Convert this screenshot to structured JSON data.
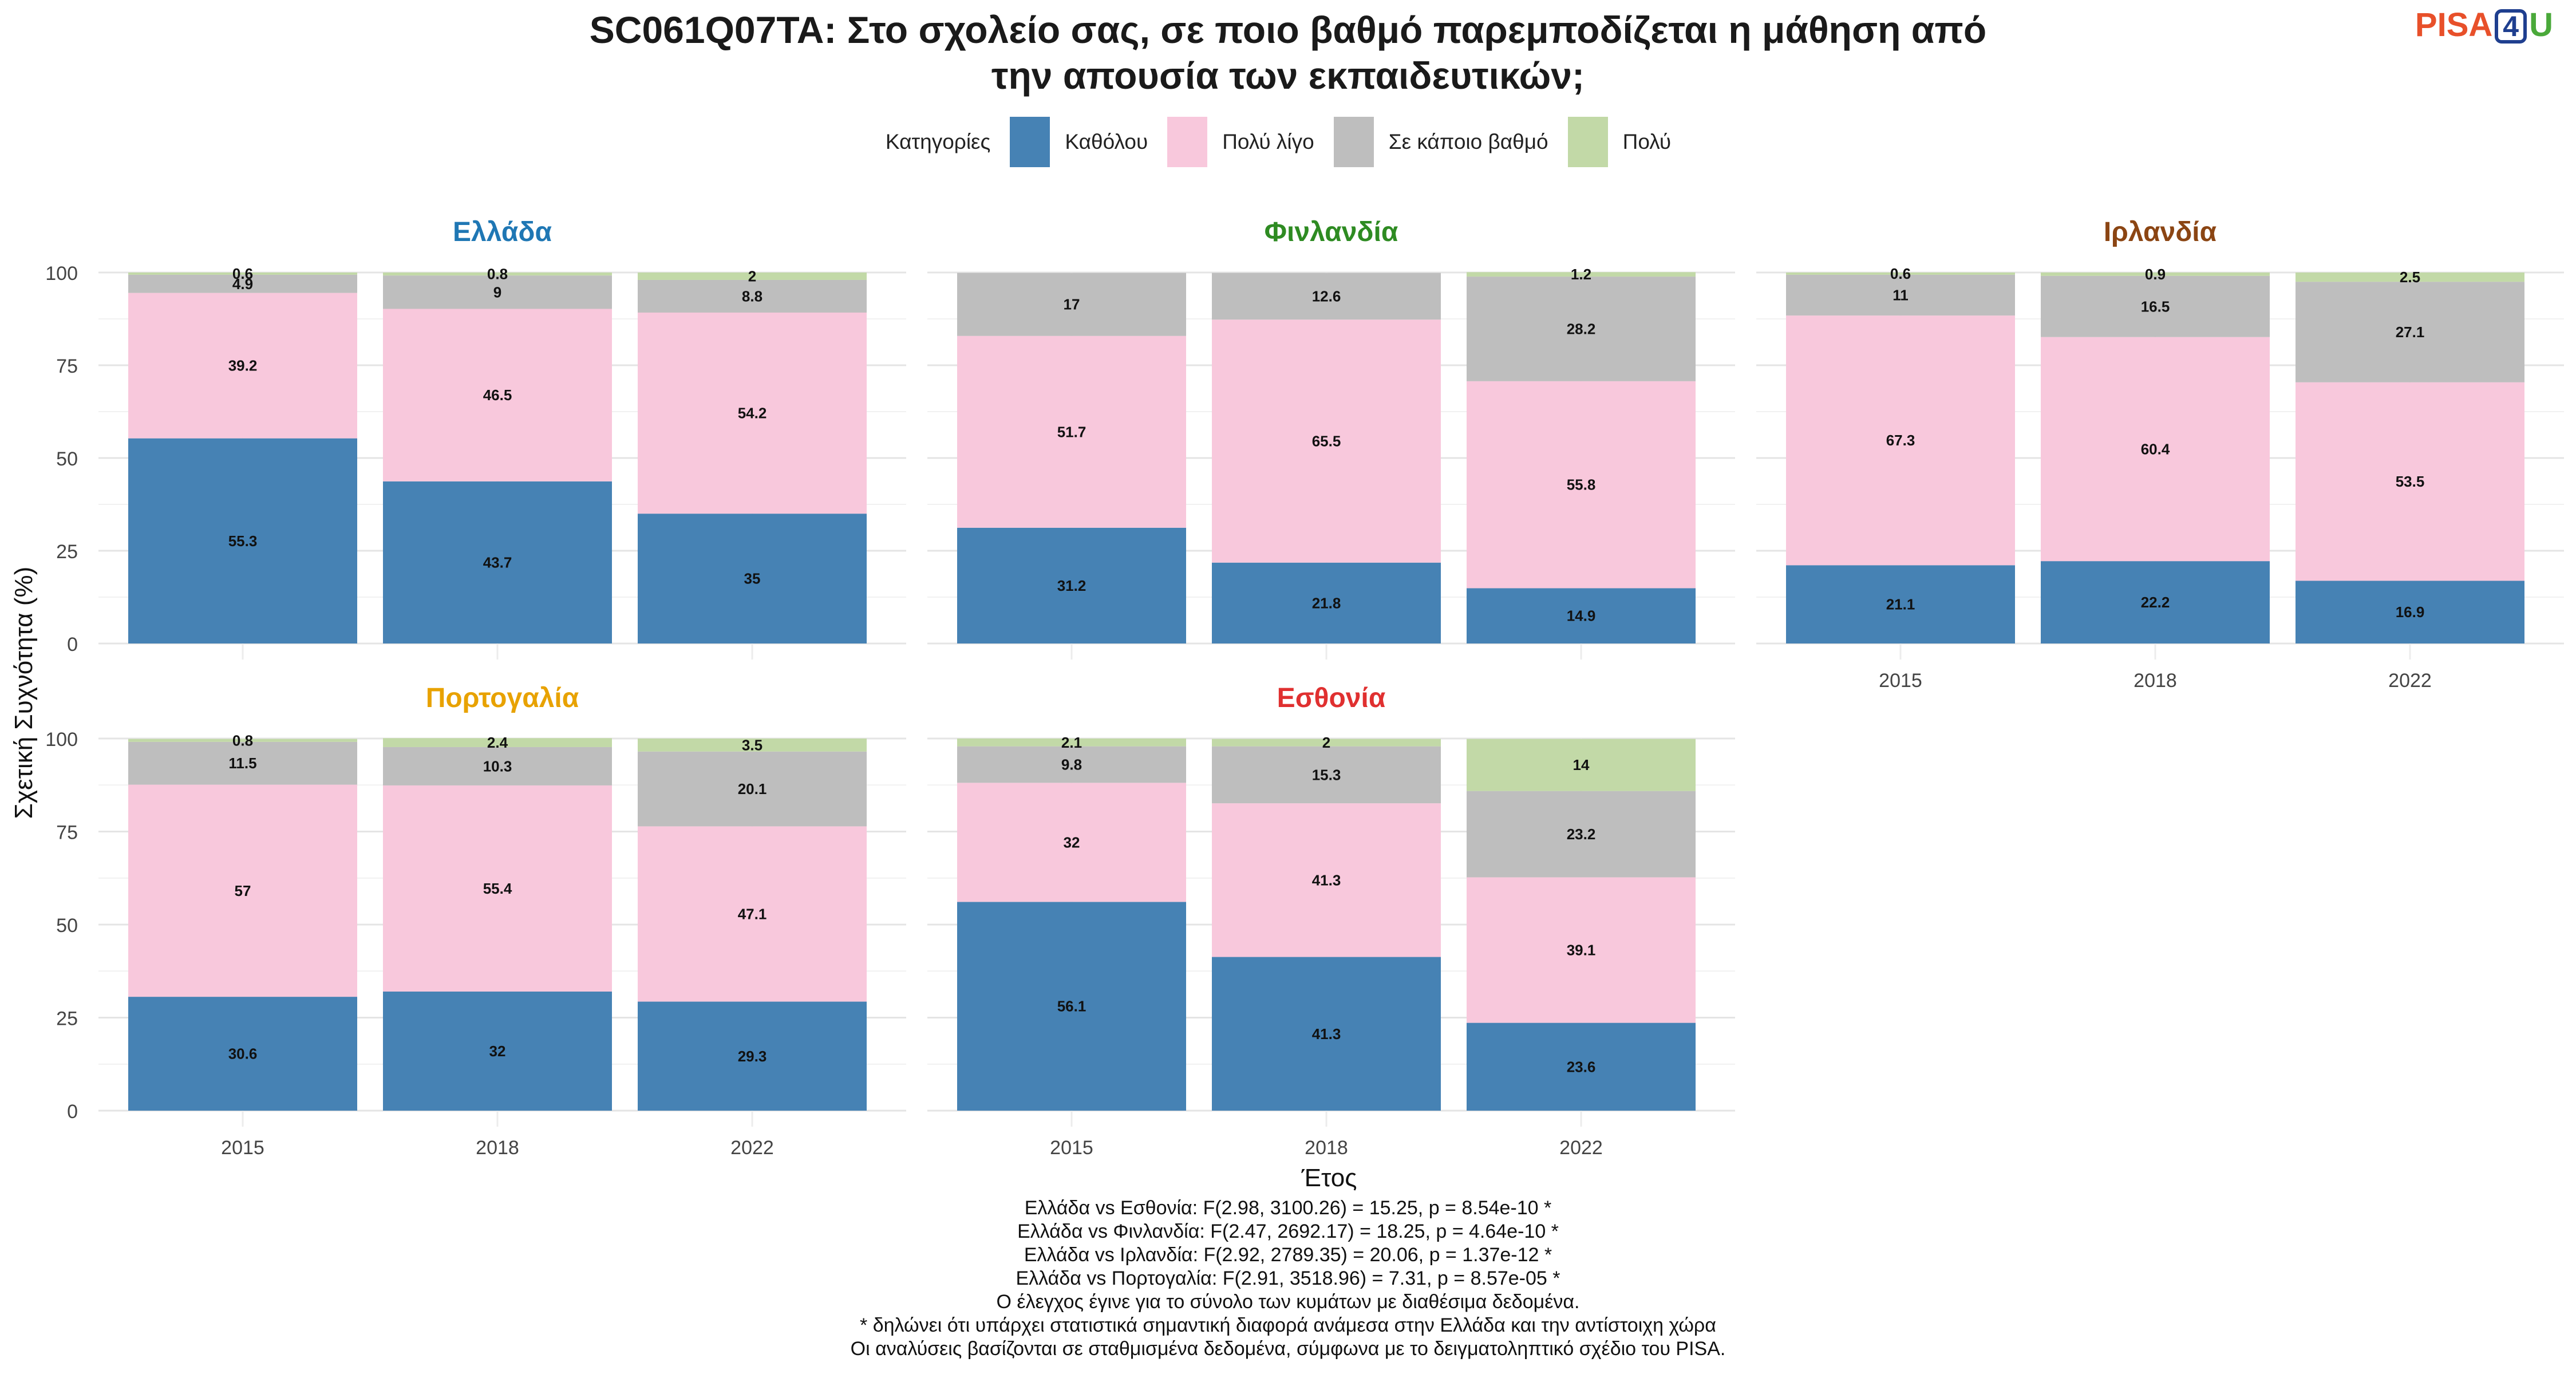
{
  "title_lines": [
    "SC061Q07TA: Στο σχολείο σας, σε ποιο βαθμό παρεμποδίζεται η μάθηση από",
    "την απουσία των εκπαιδευτικών;"
  ],
  "logo": {
    "part1": "PISA",
    "part2": "4",
    "part3": "U",
    "colors": {
      "p": "#e8502a",
      "four": "#1f3f8f",
      "u": "#4aa93a"
    }
  },
  "legend": {
    "title": "Κατηγορίες",
    "items": [
      {
        "label": "Καθόλου",
        "color": "#4682b4"
      },
      {
        "label": "Πολύ λίγο",
        "color": "#f8c8dc"
      },
      {
        "label": "Σε κάποιο βαθμό",
        "color": "#bebebe"
      },
      {
        "label": "Πολύ",
        "color": "#c2d9a7"
      }
    ]
  },
  "chart_data": {
    "type": "bar",
    "stacked": true,
    "xlabel": "Έτος",
    "ylabel": "Σχετική Συχνότητα (%)",
    "ylim": [
      0,
      100
    ],
    "yticks": [
      0,
      25,
      50,
      75,
      100
    ],
    "categories": [
      "2015",
      "2018",
      "2022"
    ],
    "series_names": [
      "Καθόλου",
      "Πολύ λίγο",
      "Σε κάποιο βαθμό",
      "Πολύ"
    ],
    "panels": [
      {
        "title": "Ελλάδα",
        "title_color": "#1f77b4",
        "values": {
          "2015": [
            55.3,
            39.2,
            4.9,
            0.6
          ],
          "2018": [
            43.7,
            46.5,
            9,
            0.8
          ],
          "2022": [
            35,
            54.2,
            8.8,
            2
          ]
        }
      },
      {
        "title": "Φινλανδία",
        "title_color": "#2e8b22",
        "values": {
          "2015": [
            31.2,
            51.7,
            17,
            null
          ],
          "2018": [
            21.8,
            65.5,
            12.6,
            null
          ],
          "2022": [
            14.9,
            55.8,
            28.2,
            1.2
          ]
        }
      },
      {
        "title": "Ιρλανδία",
        "title_color": "#8b4513",
        "values": {
          "2015": [
            21.1,
            67.3,
            11,
            0.6
          ],
          "2018": [
            22.2,
            60.4,
            16.5,
            0.9
          ],
          "2022": [
            16.9,
            53.5,
            27.1,
            2.5
          ]
        }
      },
      {
        "title": "Πορτογαλία",
        "title_color": "#e8a200",
        "values": {
          "2015": [
            30.6,
            57,
            11.5,
            0.8
          ],
          "2018": [
            32,
            55.4,
            10.3,
            2.4
          ],
          "2022": [
            29.3,
            47.1,
            20.1,
            3.5
          ]
        }
      },
      {
        "title": "Εσθονία",
        "title_color": "#e03030",
        "values": {
          "2015": [
            56.1,
            32,
            9.8,
            2.1
          ],
          "2018": [
            41.3,
            41.3,
            15.3,
            2
          ],
          "2022": [
            23.6,
            39.1,
            23.2,
            14
          ]
        }
      }
    ]
  },
  "notes": [
    "Ελλάδα vs Εσθονία: F(2.98, 3100.26) = 15.25, p = 8.54e-10 *",
    "Ελλάδα vs Φινλανδία: F(2.47, 2692.17) = 18.25, p = 4.64e-10 *",
    "Ελλάδα vs Ιρλανδία: F(2.92, 2789.35) = 20.06, p = 1.37e-12 *",
    "Ελλάδα vs Πορτογαλία: F(2.91, 3518.96) = 7.31, p = 8.57e-05 *",
    "Ο έλεγχος έγινε για το σύνολο των κυμάτων με διαθέσιμα δεδομένα.",
    "* δηλώνει ότι υπάρχει στατιστικά σημαντική διαφορά ανάμεσα στην Ελλάδα και την αντίστοιχη χώρα",
    "Οι αναλύσεις βασίζονται σε σταθμισμένα δεδομένα, σύμφωνα με το δειγματοληπτικό σχέδιο του PISA."
  ]
}
